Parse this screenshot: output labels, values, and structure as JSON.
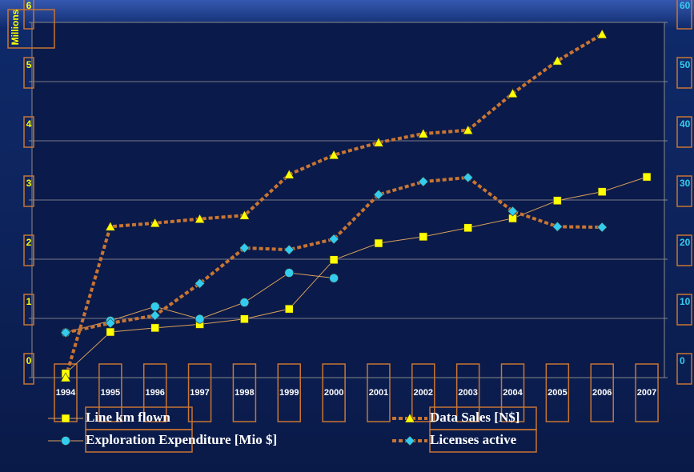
{
  "chart_data": {
    "type": "line",
    "y_axis_label": "Millions",
    "categories": [
      "1994",
      "1995",
      "1996",
      "1997",
      "1998",
      "1999",
      "2000",
      "2001",
      "2002",
      "2003",
      "2004",
      "2005",
      "2006",
      "2007"
    ],
    "series": [
      {
        "name": "Line km flown",
        "color": "#ffff00",
        "line_color": "#d9a05a",
        "line_style": "solid",
        "marker": "square",
        "axis": "y2",
        "values": [
          0.7,
          7.7,
          8.4,
          9.0,
          9.9,
          11.6,
          19.9,
          22.7,
          23.8,
          25.3,
          26.9,
          29.9,
          31.4,
          33.9
        ]
      },
      {
        "name": "Exploration Expenditure [Mio $]",
        "color": "#33ccee",
        "line_color": "#d9a05a",
        "line_style": "solid",
        "marker": "circle",
        "axis": "y2",
        "values": [
          7.6,
          9.6,
          12.0,
          9.9,
          12.7,
          17.7,
          16.8,
          null,
          null,
          null,
          null,
          null,
          null,
          null
        ]
      },
      {
        "name": "Data Sales [N$]",
        "color": "#ffff00",
        "line_color": "#c87533",
        "line_style": "dashed",
        "marker": "triangle",
        "values": [
          0.0,
          2.55,
          2.61,
          2.68,
          2.74,
          3.43,
          3.76,
          3.97,
          4.12,
          4.18,
          4.8,
          5.35,
          5.8,
          null
        ]
      },
      {
        "name": "Licenses active",
        "color": "#33ccee",
        "line_color": "#c87533",
        "line_style": "dashed",
        "marker": "diamond",
        "axis": "y2",
        "values": [
          7.6,
          9.2,
          10.5,
          15.9,
          21.9,
          21.6,
          23.4,
          30.9,
          33.1,
          33.8,
          28.1,
          25.5,
          25.4,
          null
        ]
      }
    ],
    "ylim": [
      0,
      6
    ],
    "yticks": [
      0,
      1,
      2,
      3,
      4,
      5,
      6
    ],
    "y2lim": [
      0,
      60
    ],
    "y2ticks": [
      0,
      10,
      20,
      30,
      40,
      50,
      60
    ],
    "grid": true
  }
}
